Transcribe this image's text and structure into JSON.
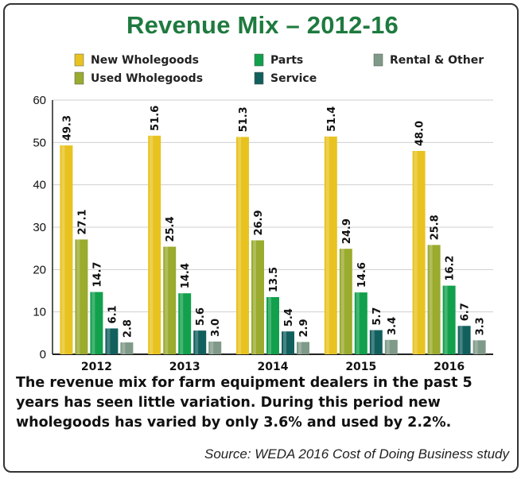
{
  "chart_data": {
    "type": "bar",
    "title": "Revenue Mix – 2012-16",
    "categories": [
      "2012",
      "2013",
      "2014",
      "2015",
      "2016"
    ],
    "series": [
      {
        "name": "New Wholegoods",
        "color": "#e8c320",
        "values": [
          49.3,
          51.6,
          51.3,
          51.4,
          48.0
        ],
        "labels": [
          "49.3",
          "51.6",
          "51.3",
          "51.4",
          "48.0"
        ]
      },
      {
        "name": "Used Wholegoods",
        "color": "#9aab2e",
        "values": [
          27.1,
          25.4,
          26.9,
          24.9,
          25.8
        ],
        "labels": [
          "27.1",
          "25.4",
          "26.9",
          "24.9",
          "25.8"
        ]
      },
      {
        "name": "Parts",
        "color": "#12a04c",
        "values": [
          14.7,
          14.4,
          13.5,
          14.6,
          16.2
        ],
        "labels": [
          "14.7",
          "14.4",
          "13.5",
          "14.6",
          "16.2"
        ]
      },
      {
        "name": "Service",
        "color": "#12605e",
        "values": [
          6.1,
          5.6,
          5.4,
          5.7,
          6.7
        ],
        "labels": [
          "6.1",
          "5.6",
          "5.4",
          "5.7",
          "6.7"
        ]
      },
      {
        "name": "Rental & Other",
        "color": "#7f9a88",
        "values": [
          2.8,
          3.0,
          2.9,
          3.4,
          3.3
        ],
        "labels": [
          "2.8",
          "3.0",
          "2.9",
          "3.4",
          "3.3"
        ]
      }
    ],
    "ylim": [
      0,
      60
    ],
    "yticks": [
      0,
      10,
      20,
      30,
      40,
      50,
      60
    ],
    "grid": true,
    "legend": "top"
  },
  "caption": "The revenue mix for farm equipment dealers in the past 5 years has seen little variation. During this period new wholegoods has varied by only 3.6% and used by 2.2%.",
  "source": "Source: WEDA 2016 Cost of Doing Business study"
}
